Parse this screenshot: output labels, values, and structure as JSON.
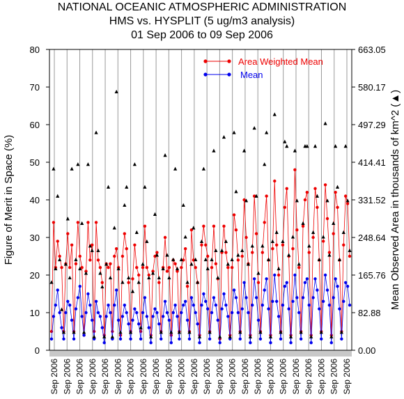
{
  "chart_data": {
    "type": "line",
    "title_lines": [
      "NATIONAL OCEANIC ATMOSPHERIC ADMINISTRATION",
      "HMS vs. HYSPLIT (5 ug/m3 analysis)",
      "01 Sep 2006 to 09 Sep 2006"
    ],
    "ylabel_left": "Figure of Merit in Space (%)",
    "ylabel_right": "Mean Observed Area in thousands of km^2 (▲)",
    "ylim_left": [
      0,
      80
    ],
    "yticks_left": [
      "0",
      "10",
      "20",
      "30",
      "40",
      "50",
      "60",
      "70",
      "80"
    ],
    "ylim_right": [
      0,
      663.05
    ],
    "yticks_right": [
      "0.00",
      "82.88",
      "165.76",
      "248.64",
      "331.52",
      "414.41",
      "497.29",
      "580.17",
      "663.05"
    ],
    "x_tick_label": "Sep 2006",
    "x_tick_count": 24,
    "legend": {
      "position": "top-right",
      "entries": [
        "Area Weighted Mean",
        "Mean"
      ]
    },
    "series": [
      {
        "name": "Area Weighted Mean",
        "color": "#ee0000",
        "values": [
          5,
          34,
          22,
          29,
          25,
          22,
          5,
          23,
          31,
          22,
          28,
          5,
          23,
          34,
          25,
          22,
          4,
          21,
          34,
          24,
          28,
          5,
          34,
          24,
          22,
          18,
          4,
          23,
          22,
          23,
          5,
          25,
          27,
          22,
          4,
          25,
          31,
          27,
          18,
          5,
          19,
          28,
          22,
          20,
          5,
          22,
          33,
          22,
          20,
          4,
          21,
          25,
          26,
          18,
          5,
          22,
          30,
          21,
          22,
          4,
          24,
          23,
          21,
          5,
          22,
          24,
          27,
          17,
          5,
          32,
          24,
          22,
          18,
          4,
          28,
          33,
          28,
          25,
          5,
          22,
          33,
          23,
          19,
          3,
          26,
          33,
          26,
          22,
          4,
          22,
          36,
          32,
          24,
          5,
          25,
          40,
          30,
          23,
          4,
          26,
          41,
          31,
          18,
          5,
          26,
          34,
          41,
          24,
          4,
          27,
          45,
          28,
          20,
          5,
          28,
          38,
          43,
          25,
          4,
          27,
          48,
          32,
          22,
          5,
          33,
          40,
          42,
          26,
          4,
          30,
          43,
          38,
          24,
          5,
          29,
          44,
          35,
          26,
          4,
          31,
          42,
          38,
          24,
          5,
          28,
          41,
          39,
          25
        ]
      },
      {
        "name": "Mean",
        "color": "#0000ee",
        "values": [
          3,
          9,
          12,
          16,
          10,
          6,
          3,
          10,
          13,
          12,
          8,
          3,
          11,
          14,
          17,
          9,
          4,
          10,
          15,
          12,
          8,
          3,
          13,
          10,
          9,
          6,
          2,
          9,
          12,
          10,
          3,
          12,
          16,
          8,
          3,
          9,
          12,
          10,
          7,
          3,
          8,
          11,
          10,
          7,
          3,
          10,
          14,
          9,
          6,
          2,
          9,
          11,
          10,
          7,
          3,
          9,
          13,
          10,
          8,
          2,
          10,
          12,
          9,
          3,
          10,
          12,
          13,
          8,
          3,
          14,
          12,
          10,
          7,
          2,
          12,
          15,
          13,
          11,
          3,
          10,
          14,
          12,
          8,
          2,
          11,
          15,
          12,
          9,
          3,
          10,
          16,
          14,
          10,
          3,
          11,
          18,
          14,
          10,
          2,
          12,
          19,
          14,
          8,
          3,
          12,
          16,
          19,
          11,
          2,
          13,
          20,
          13,
          9,
          3,
          12,
          17,
          18,
          11,
          2,
          13,
          20,
          14,
          10,
          3,
          14,
          18,
          19,
          12,
          2,
          14,
          19,
          16,
          11,
          3,
          13,
          20,
          16,
          12,
          2,
          14,
          19,
          17,
          11,
          3,
          13,
          18,
          17,
          12
        ]
      },
      {
        "name": "Mean Observed Area",
        "marker": "triangle",
        "color": "#000000",
        "values": [
          150,
          400,
          180,
          340,
          200,
          90,
          40,
          190,
          290,
          160,
          400,
          40,
          200,
          410,
          180,
          280,
          40,
          170,
          410,
          230,
          220,
          30,
          480,
          220,
          170,
          140,
          30,
          190,
          360,
          160,
          30,
          270,
          570,
          180,
          40,
          150,
          320,
          360,
          160,
          40,
          130,
          410,
          260,
          150,
          50,
          190,
          360,
          240,
          160,
          30,
          170,
          300,
          210,
          160,
          40,
          180,
          430,
          210,
          160,
          40,
          200,
          400,
          180,
          40,
          200,
          320,
          250,
          150,
          40,
          190,
          270,
          200,
          150,
          30,
          240,
          400,
          200,
          180,
          40,
          200,
          440,
          220,
          160,
          30,
          220,
          470,
          240,
          190,
          30,
          200,
          480,
          350,
          210,
          40,
          220,
          440,
          330,
          190,
          30,
          230,
          490,
          340,
          170,
          40,
          230,
          410,
          480,
          200,
          30,
          240,
          520,
          260,
          180,
          40,
          240,
          460,
          450,
          210,
          30,
          250,
          440,
          330,
          190,
          40,
          280,
          450,
          450,
          230,
          30,
          260,
          450,
          340,
          200,
          40,
          250,
          500,
          330,
          210,
          30,
          280,
          450,
          360,
          200,
          40,
          260,
          450,
          330,
          220
        ]
      }
    ]
  }
}
